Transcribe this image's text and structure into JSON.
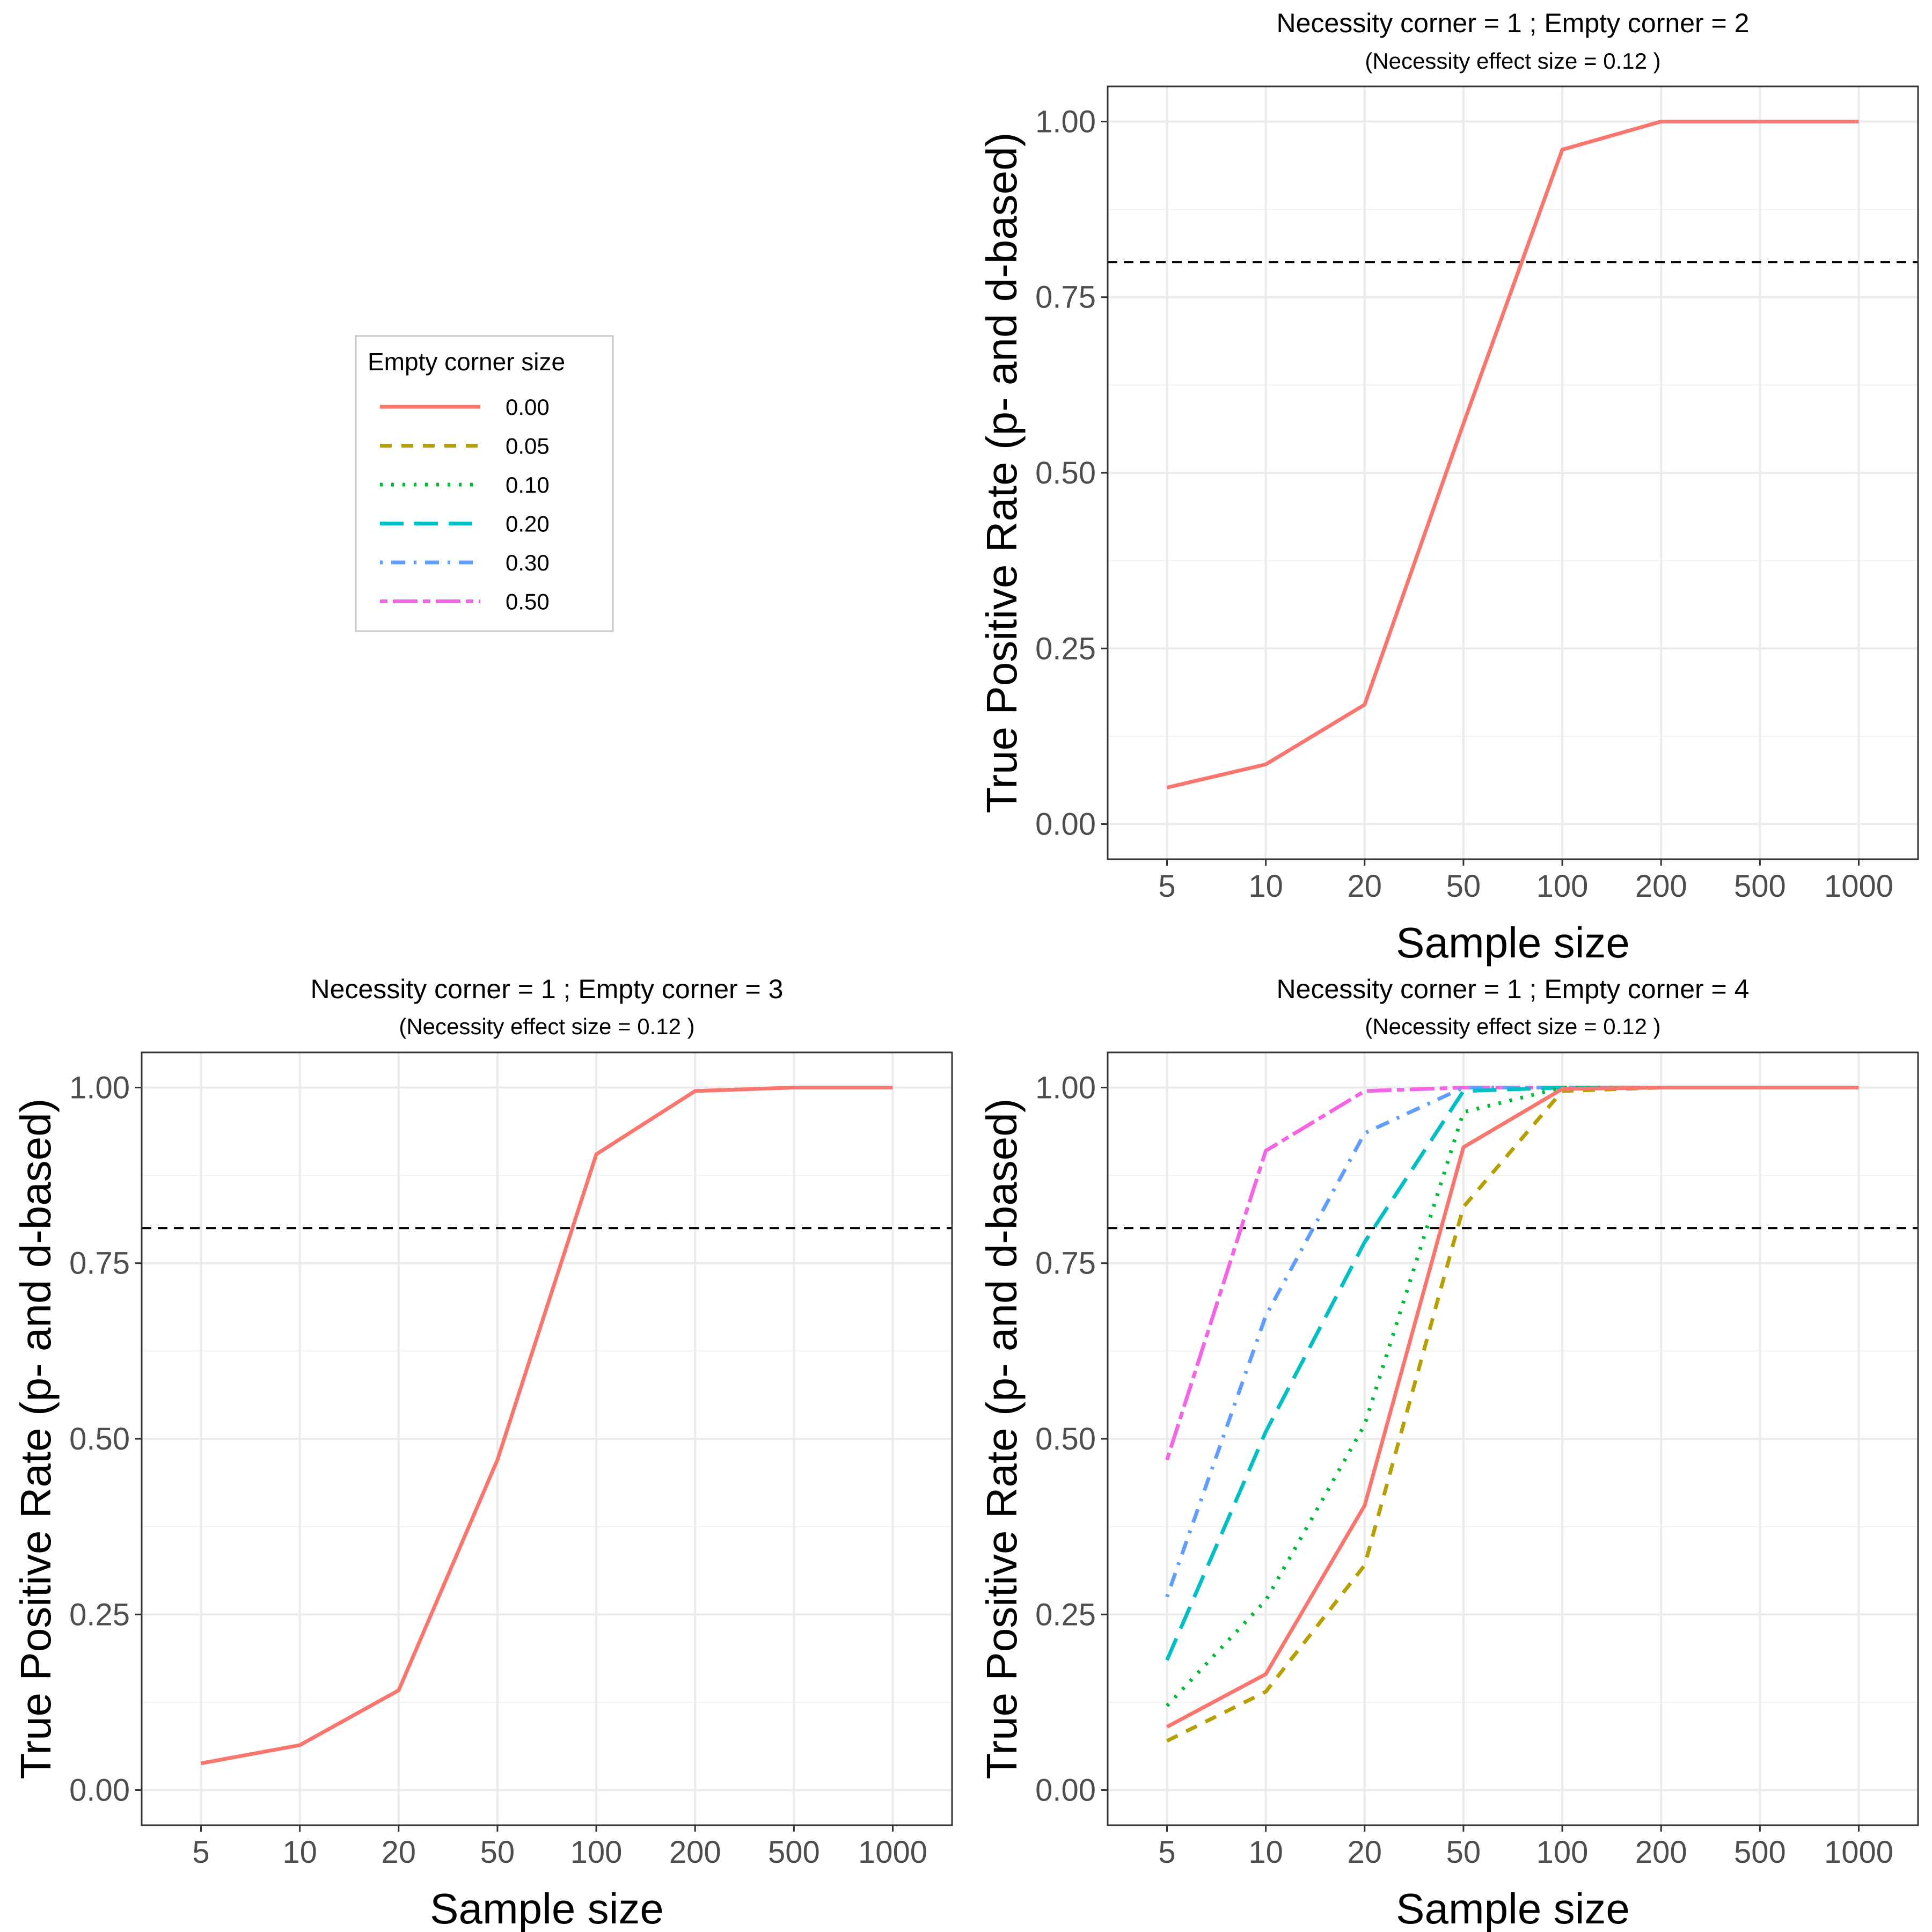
{
  "chart_data": [
    {
      "type": "line",
      "title": "Necessity corner = 1 ; Empty corner = 2",
      "subtitle": "(Necessity effect size = 0.12 )",
      "xlabel": "Sample size",
      "ylabel": "True Positive Rate (p- and d-based)",
      "x_scale": "categorical",
      "categories": [
        "5",
        "10",
        "20",
        "50",
        "100",
        "200",
        "500",
        "1000"
      ],
      "ylim": [
        -0.05,
        1.05
      ],
      "yticks": [
        "0.00",
        "0.25",
        "0.50",
        "0.75",
        "1.00"
      ],
      "reference_line": {
        "y": 0.8,
        "style": "dashed",
        "color": "#000000"
      },
      "grid": true,
      "series": [
        {
          "name": "0.00",
          "values": [
            0.052,
            0.085,
            0.17,
            0.57,
            0.96,
            1.0,
            1.0,
            1.0
          ]
        }
      ]
    },
    {
      "type": "line",
      "title": "Necessity corner = 1 ; Empty corner = 3",
      "subtitle": "(Necessity effect size = 0.12 )",
      "xlabel": "Sample size",
      "ylabel": "True Positive Rate (p- and d-based)",
      "x_scale": "categorical",
      "categories": [
        "5",
        "10",
        "20",
        "50",
        "100",
        "200",
        "500",
        "1000"
      ],
      "ylim": [
        -0.05,
        1.05
      ],
      "yticks": [
        "0.00",
        "0.25",
        "0.50",
        "0.75",
        "1.00"
      ],
      "reference_line": {
        "y": 0.8,
        "style": "dashed",
        "color": "#000000"
      },
      "grid": true,
      "series": [
        {
          "name": "0.00",
          "values": [
            0.038,
            0.064,
            0.142,
            0.47,
            0.905,
            0.995,
            1.0,
            1.0
          ]
        }
      ]
    },
    {
      "type": "line",
      "title": "Necessity corner = 1 ; Empty corner = 4",
      "subtitle": "(Necessity effect size = 0.12 )",
      "xlabel": "Sample size",
      "ylabel": "True Positive Rate (p- and d-based)",
      "x_scale": "categorical",
      "categories": [
        "5",
        "10",
        "20",
        "50",
        "100",
        "200",
        "500",
        "1000"
      ],
      "ylim": [
        -0.05,
        1.05
      ],
      "yticks": [
        "0.00",
        "0.25",
        "0.50",
        "0.75",
        "1.00"
      ],
      "reference_line": {
        "y": 0.8,
        "style": "dashed",
        "color": "#000000"
      },
      "grid": true,
      "series": [
        {
          "name": "0.00",
          "values": [
            0.09,
            0.165,
            0.405,
            0.915,
            0.998,
            1.0,
            1.0,
            1.0
          ]
        },
        {
          "name": "0.05",
          "values": [
            0.07,
            0.14,
            0.32,
            0.83,
            0.995,
            1.0,
            1.0,
            1.0
          ]
        },
        {
          "name": "0.10",
          "values": [
            0.12,
            0.27,
            0.52,
            0.965,
            1.0,
            1.0,
            1.0,
            1.0
          ]
        },
        {
          "name": "0.20",
          "values": [
            0.185,
            0.51,
            0.78,
            0.995,
            1.0,
            1.0,
            1.0,
            1.0
          ]
        },
        {
          "name": "0.30",
          "values": [
            0.275,
            0.675,
            0.935,
            1.0,
            1.0,
            1.0,
            1.0,
            1.0
          ]
        },
        {
          "name": "0.50",
          "values": [
            0.47,
            0.91,
            0.995,
            1.0,
            1.0,
            1.0,
            1.0,
            1.0
          ]
        }
      ]
    }
  ],
  "legend": {
    "title": "Empty corner size",
    "entries": [
      {
        "label": "0.00",
        "color": "#F8766D",
        "dash": "solid"
      },
      {
        "label": "0.05",
        "color": "#B79F00",
        "dash": "dashed"
      },
      {
        "label": "0.10",
        "color": "#00BA38",
        "dash": "dotted"
      },
      {
        "label": "0.20",
        "color": "#00BFC4",
        "dash": "longdash"
      },
      {
        "label": "0.30",
        "color": "#619CFF",
        "dash": "dotdash"
      },
      {
        "label": "0.50",
        "color": "#F564E3",
        "dash": "twodash"
      }
    ]
  }
}
